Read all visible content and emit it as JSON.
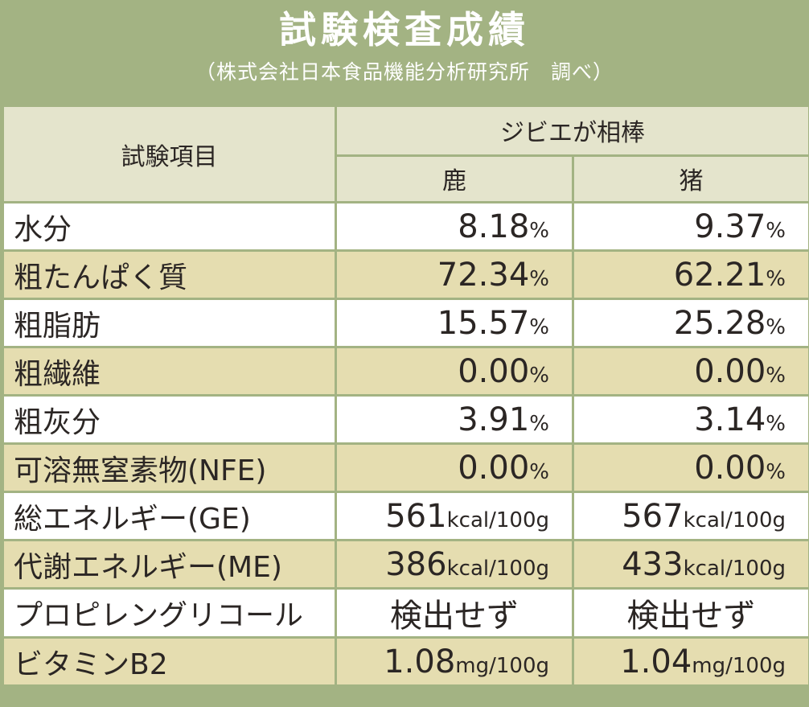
{
  "header": {
    "title": "試験検査成績",
    "subtitle": "（株式会社日本食品機能分析研究所　調べ）"
  },
  "table": {
    "item_header": "試験項目",
    "group_header": "ジビエが相棒",
    "columns": [
      "鹿",
      "猪"
    ],
    "rows": [
      {
        "item": "水分",
        "v1": "8.18",
        "u1": "%",
        "v2": "9.37",
        "u2": "%"
      },
      {
        "item": "粗たんぱく質",
        "v1": "72.34",
        "u1": "%",
        "v2": "62.21",
        "u2": "%"
      },
      {
        "item": "粗脂肪",
        "v1": "15.57",
        "u1": "%",
        "v2": "25.28",
        "u2": "%"
      },
      {
        "item": "粗繊維",
        "v1": "0.00",
        "u1": "%",
        "v2": "0.00",
        "u2": "%"
      },
      {
        "item": "粗灰分",
        "v1": "3.91",
        "u1": "%",
        "v2": "3.14",
        "u2": "%"
      },
      {
        "item": "可溶無窒素物(NFE)",
        "v1": "0.00",
        "u1": "%",
        "v2": "0.00",
        "u2": "%"
      },
      {
        "item": "総エネルギー(GE)",
        "v1": "561",
        "u1": "kcal/100g",
        "v2": "567",
        "u2": "kcal/100g"
      },
      {
        "item": "代謝エネルギー(ME)",
        "v1": "386",
        "u1": "kcal/100g",
        "v2": "433",
        "u2": "kcal/100g"
      },
      {
        "item": "プロピレングリコール",
        "v1": "検出せず",
        "u1": "",
        "v2": "検出せず",
        "u2": ""
      },
      {
        "item": "ビタミンB2",
        "v1": "1.08",
        "u1": "mg/100g",
        "v2": "1.04",
        "u2": "mg/100g"
      }
    ]
  },
  "colors": {
    "frame": "#a3b383",
    "header_cell": "#e4e4cc",
    "row_alt": "#e5ddb0",
    "row_white": "#ffffff",
    "text": "#2b2624"
  }
}
